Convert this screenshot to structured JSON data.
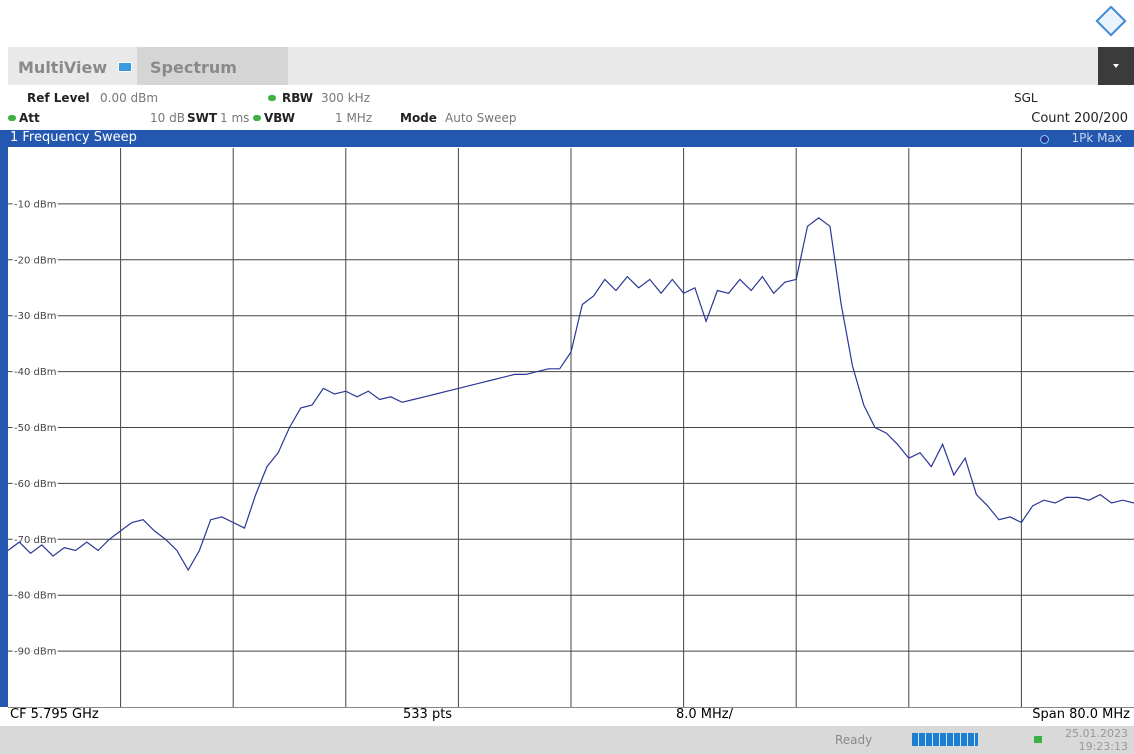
{
  "header": {
    "tabs": [
      "MultiView",
      "Spectrum"
    ]
  },
  "settings": {
    "ref_level_label": "Ref Level",
    "ref_level": "0.00 dBm",
    "rbw_label": "RBW",
    "rbw": "300 kHz",
    "sgl": "SGL",
    "att_label": "Att",
    "att": "10 dB",
    "swt_label": "SWT",
    "swt": "1 ms",
    "vbw_label": "VBW",
    "vbw": "1 MHz",
    "mode_label": "Mode",
    "mode": "Auto Sweep",
    "count": "Count 200/200"
  },
  "window": {
    "title": "1 Frequency Sweep"
  },
  "chart_data": {
    "type": "line",
    "series": [
      {
        "name": "1Pk Max",
        "color": "#2b3796",
        "values": [
          -72,
          -70.5,
          -72.5,
          -71,
          -73,
          -71.5,
          -72,
          -70.5,
          -72,
          -70,
          -68.5,
          -67,
          -66.5,
          -68.5,
          -70,
          -72,
          -75.5,
          -72,
          -66.5,
          -66,
          -67,
          -68,
          -62,
          -57,
          -54.5,
          -50,
          -46.5,
          -46,
          -43,
          -44,
          -43.5,
          -44.5,
          -43.5,
          -45,
          -44.5,
          -45.5,
          -45,
          -44.5,
          -44,
          -43.5,
          -43,
          -42.5,
          -42,
          -41.5,
          -41,
          -40.5,
          -40.5,
          -40,
          -39.5,
          -39.5,
          -36.5,
          -28,
          -26.5,
          -23.5,
          -25.5,
          -23,
          -25,
          -23.5,
          -26,
          -23.5,
          -26,
          -25,
          -31,
          -25.5,
          -26,
          -23.5,
          -25.5,
          -23,
          -26,
          -24,
          -23.5,
          -14,
          -12.5,
          -14,
          -28,
          -39,
          -46,
          -50,
          -51,
          -53,
          -55.5,
          -54.5,
          -57,
          -53,
          -58.5,
          -55.5,
          -62,
          -64,
          -66.5,
          -66,
          -67,
          -64,
          -63,
          -63.5,
          -62.5,
          -62.5,
          -63,
          -62,
          -63.5,
          -63,
          -63.5
        ]
      }
    ],
    "ylim": [
      -100,
      0
    ],
    "yticks": [
      {
        "value": -10,
        "label": "-10 dBm"
      },
      {
        "value": -20,
        "label": "-20 dBm"
      },
      {
        "value": -30,
        "label": "-30 dBm"
      },
      {
        "value": -40,
        "label": "-40 dBm"
      },
      {
        "value": -50,
        "label": "-50 dBm"
      },
      {
        "value": -60,
        "label": "-60 dBm"
      },
      {
        "value": -70,
        "label": "-70 dBm"
      },
      {
        "value": -80,
        "label": "-80 dBm"
      },
      {
        "value": -90,
        "label": "-90 dBm"
      }
    ],
    "grid": true
  },
  "footer": {
    "center": "CF 5.795 GHz",
    "points": "533 pts",
    "division": "8.0 MHz/",
    "span": "Span 80.0 MHz"
  },
  "status": {
    "state": "Ready",
    "date": "25.01.2023",
    "time": "19:23:13"
  }
}
